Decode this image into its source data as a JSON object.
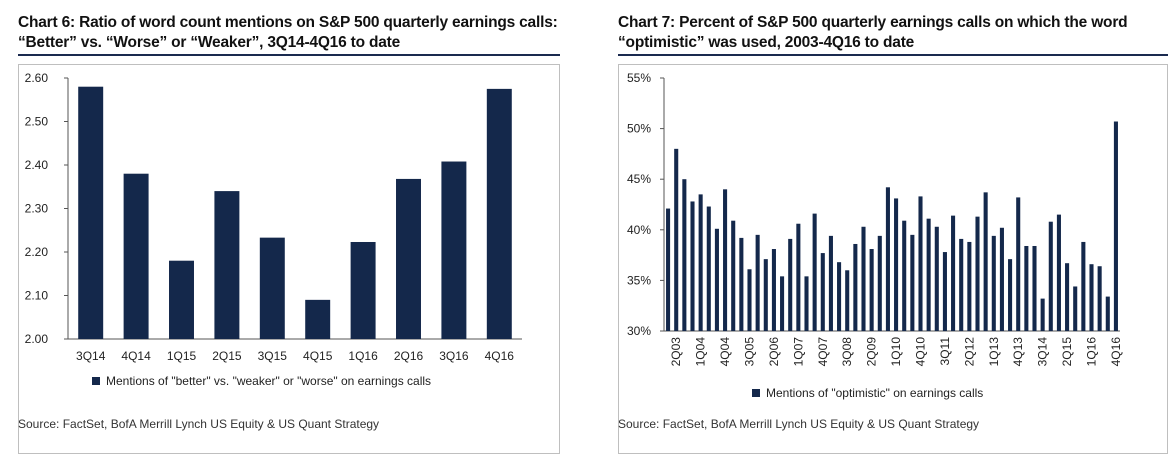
{
  "left": {
    "title": "Chart 6: Ratio of word count mentions on S&P 500 quarterly earnings calls: “Better” vs. “Worse” or “Weaker”, 3Q14-4Q16 to date",
    "source": "Source: FactSet, BofA Merrill Lynch US Equity & US Quant Strategy"
  },
  "right": {
    "title": "Chart 7: Percent of S&P 500 quarterly earnings calls on which the word “optimistic” was used, 2003-4Q16 to date",
    "source": "Source: FactSet, BofA Merrill Lynch US Equity & US Quant Strategy"
  },
  "colors": {
    "bar": "#14284b",
    "frame": "#bfbfbf",
    "rule": "#1a2a4f"
  },
  "chart_data": [
    {
      "type": "bar",
      "title": "Chart 6: Ratio of word count mentions on S&P 500 quarterly earnings calls: “Better” vs. “Worse” or “Weaker”, 3Q14-4Q16 to date",
      "categories": [
        "3Q14",
        "4Q14",
        "1Q15",
        "2Q15",
        "3Q15",
        "4Q15",
        "1Q16",
        "2Q16",
        "3Q16",
        "4Q16"
      ],
      "series": [
        {
          "name": "Mentions of \"better\" vs. \"weaker\" or \"worse\" on earnings calls",
          "values": [
            2.58,
            2.38,
            2.18,
            2.34,
            2.233,
            2.09,
            2.223,
            2.368,
            2.408,
            2.575
          ]
        }
      ],
      "ylim": [
        2.0,
        2.6
      ],
      "yticks": [
        "2.00",
        "2.10",
        "2.20",
        "2.30",
        "2.40",
        "2.50",
        "2.60"
      ],
      "legend": "bottom",
      "grid": false
    },
    {
      "type": "bar",
      "title": "Chart 7: Percent of S&P 500 quarterly earnings calls on which the word “optimistic” was used, 2003-4Q16 to date",
      "categories": [
        "1Q03",
        "2Q03",
        "3Q03",
        "4Q03",
        "1Q04",
        "2Q04",
        "3Q04",
        "4Q04",
        "1Q05",
        "2Q05",
        "3Q05",
        "4Q05",
        "1Q06",
        "2Q06",
        "3Q06",
        "4Q06",
        "1Q07",
        "2Q07",
        "3Q07",
        "4Q07",
        "1Q08",
        "2Q08",
        "3Q08",
        "4Q08",
        "1Q09",
        "2Q09",
        "3Q09",
        "4Q09",
        "1Q10",
        "2Q10",
        "3Q10",
        "4Q10",
        "1Q11",
        "2Q11",
        "3Q11",
        "4Q11",
        "1Q12",
        "2Q12",
        "3Q12",
        "4Q12",
        "1Q13",
        "2Q13",
        "3Q13",
        "4Q13",
        "1Q14",
        "2Q14",
        "3Q14",
        "4Q14",
        "1Q15",
        "2Q15",
        "3Q15",
        "4Q15",
        "1Q16",
        "2Q16",
        "3Q16",
        "4Q16"
      ],
      "xticklabels": [
        "2Q03",
        "1Q04",
        "4Q04",
        "3Q05",
        "2Q06",
        "1Q07",
        "4Q07",
        "3Q08",
        "2Q09",
        "1Q10",
        "4Q10",
        "3Q11",
        "2Q12",
        "1Q13",
        "4Q13",
        "3Q14",
        "2Q15",
        "1Q16",
        "4Q16"
      ],
      "series": [
        {
          "name": "Mentions of \"optimistic\" on earnings calls",
          "values": [
            42.1,
            48.0,
            45.0,
            42.8,
            43.5,
            42.3,
            40.1,
            44.0,
            40.9,
            39.2,
            36.1,
            39.5,
            37.1,
            38.1,
            35.4,
            39.1,
            40.6,
            35.4,
            41.6,
            37.7,
            39.4,
            36.8,
            36.0,
            38.6,
            40.3,
            38.1,
            39.4,
            44.2,
            43.1,
            40.9,
            39.5,
            43.3,
            41.1,
            40.3,
            37.8,
            41.4,
            39.1,
            38.8,
            41.3,
            43.7,
            39.4,
            40.2,
            37.1,
            43.2,
            38.4,
            38.4,
            33.2,
            40.8,
            41.5,
            36.7,
            34.4,
            38.8,
            36.6,
            36.4,
            33.4,
            50.7
          ]
        }
      ],
      "ylim": [
        30,
        55
      ],
      "yticks": [
        "30%",
        "35%",
        "40%",
        "45%",
        "50%",
        "55%"
      ],
      "legend": "bottom",
      "grid": false
    }
  ]
}
